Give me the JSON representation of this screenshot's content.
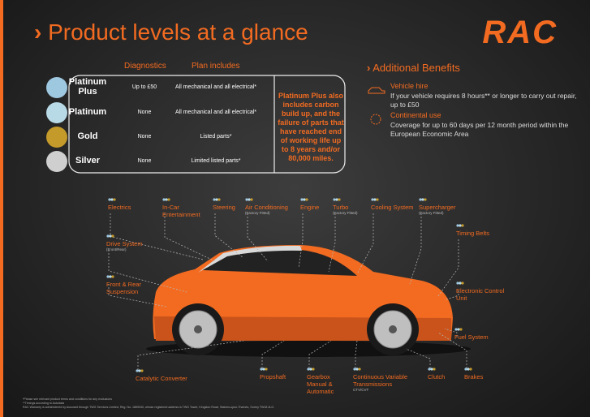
{
  "header": {
    "title": "Product levels at a glance",
    "logo": "RAC"
  },
  "table": {
    "columns": [
      "Diagnostics",
      "Plan includes"
    ],
    "rows": [
      [
        "Platinum Plus",
        "Up to £50",
        "All mechanical and all electrical*"
      ],
      [
        "Platinum",
        "None",
        "All mechanical and all electrical*"
      ],
      [
        "Gold",
        "None",
        "Listed parts*"
      ],
      [
        "Silver",
        "None",
        "Limited listed parts*"
      ]
    ]
  },
  "platinum_note": "Platinum Plus also includes carbon build up, and the failure of parts that have reached end of working life up to 8 years and/or 80,000 miles.",
  "benefits": {
    "title": "Additional Benefits",
    "items": [
      {
        "title": "Vehicle hire",
        "text": "If your vehicle requires 8 hours** or longer to carry out repair, up to £50"
      },
      {
        "title": "Continental use",
        "text": "Coverage for up to 60 days per 12 month period within the European Economic Area"
      }
    ]
  },
  "parts": [
    {
      "label": "Electrics"
    },
    {
      "label": "In-Car Entertainment"
    },
    {
      "label": "Steering"
    },
    {
      "label": "Air Conditioning",
      "note": "(Factory Fitted)"
    },
    {
      "label": "Engine"
    },
    {
      "label": "Turbo",
      "note": "(Factory Fitted)"
    },
    {
      "label": "Cooling System"
    },
    {
      "label": "Supercharger",
      "note": "(Factory Fitted)"
    },
    {
      "label": "Timing Belts"
    },
    {
      "label": "Drive System",
      "note": "(Front/Rear)"
    },
    {
      "label": "Front & Rear Suspension"
    },
    {
      "label": "Electronic Control Unit"
    },
    {
      "label": "Fuel System"
    },
    {
      "label": "Catalytic Converter"
    },
    {
      "label": "Propshaft"
    },
    {
      "label": "Gearbox Manual & Automatic"
    },
    {
      "label": "Continuous Variable Transmissions",
      "note": "CTV/CVT"
    },
    {
      "label": "Clutch"
    },
    {
      "label": "Brakes"
    }
  ],
  "footnotes": [
    "*Please see relevant product terms and conditions for any exclusions",
    "**Timings according to Autodata",
    "RAC Warranty is administered by Assurant through TWG Services Limited, Reg. No. 1869040, whose registered address is TWG Tower, Kingston Road, Staines-upon-Thames, Surrey TW18 4LG."
  ]
}
